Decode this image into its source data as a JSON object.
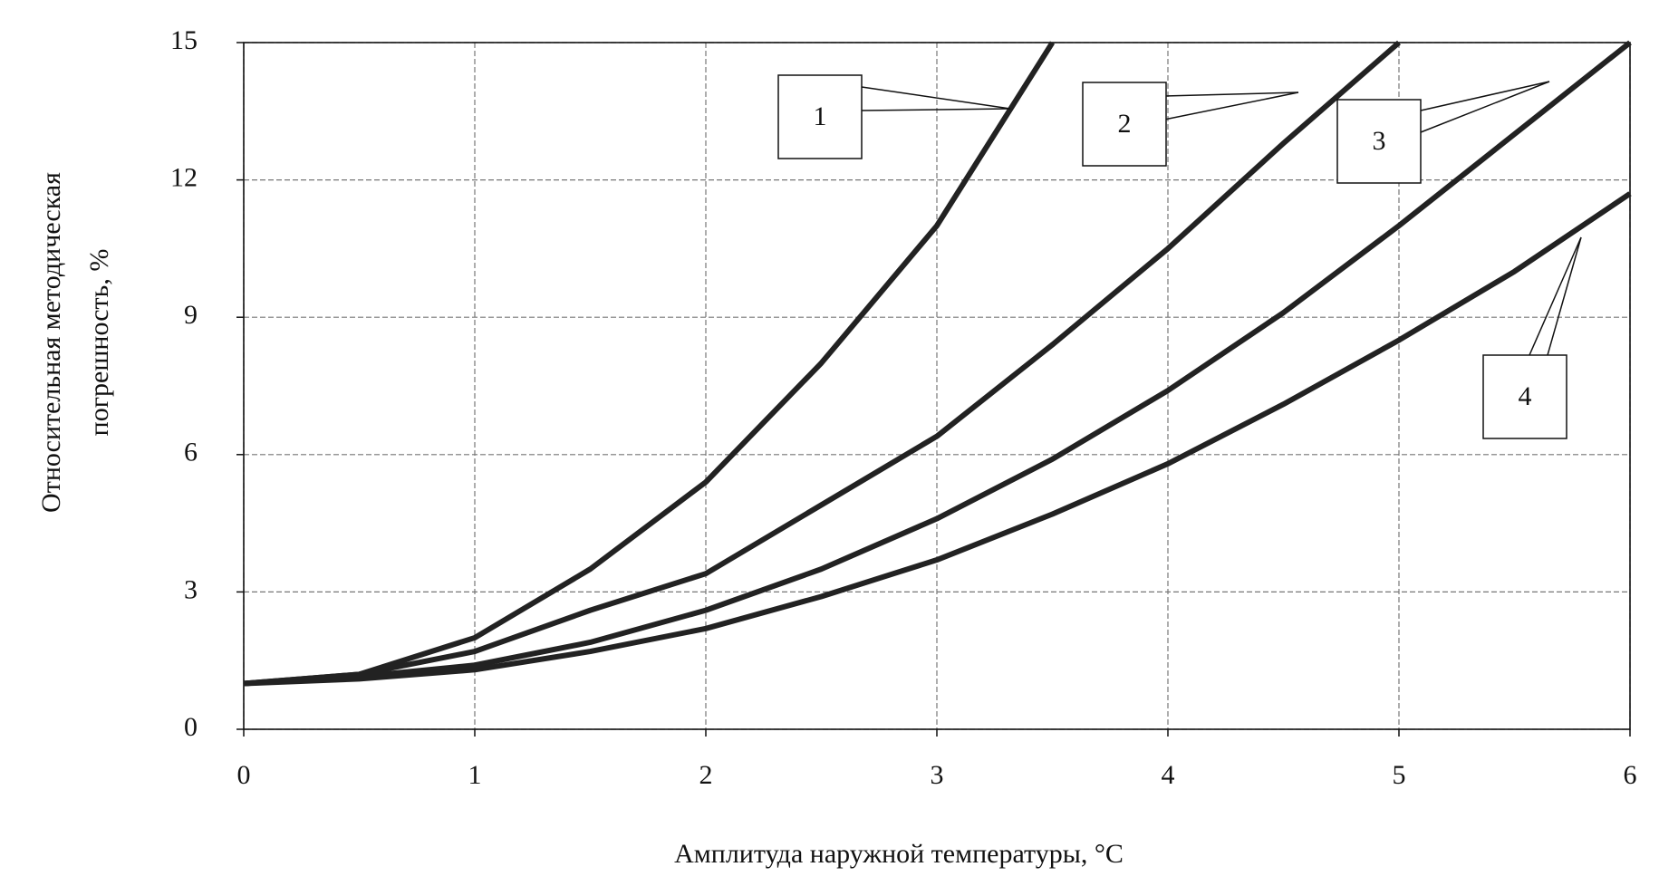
{
  "chart_data": {
    "type": "line",
    "x_label": "Амплитуда наружной температуры, °C",
    "y_label": [
      "Относительная методическая",
      "погрешность, %"
    ],
    "x": [
      0,
      0.5,
      1,
      1.5,
      2,
      2.5,
      3,
      3.5,
      4,
      4.5,
      5,
      5.5,
      6
    ],
    "series": [
      {
        "name": "1",
        "color": "#222222",
        "values": [
          1,
          1.2,
          2.0,
          3.5,
          5.4,
          8.0,
          11.0,
          15.0,
          null,
          null,
          null,
          null,
          null
        ]
      },
      {
        "name": "2",
        "color": "#222222",
        "values": [
          1,
          1.2,
          1.7,
          2.6,
          3.4,
          4.9,
          6.4,
          8.4,
          10.5,
          12.8,
          15.0,
          null,
          null
        ]
      },
      {
        "name": "3",
        "color": "#222222",
        "values": [
          1,
          1.15,
          1.4,
          1.9,
          2.6,
          3.5,
          4.6,
          5.9,
          7.4,
          9.1,
          11.0,
          13.0,
          15.0
        ]
      },
      {
        "name": "4",
        "color": "#222222",
        "values": [
          1,
          1.1,
          1.3,
          1.7,
          2.2,
          2.9,
          3.7,
          4.7,
          5.8,
          7.1,
          8.5,
          10.0,
          11.7
        ]
      }
    ],
    "xlim": [
      0,
      6
    ],
    "xticks": [
      0,
      1,
      2,
      3,
      4,
      5,
      6
    ],
    "ylim": [
      0,
      15
    ],
    "yticks": [
      0,
      3,
      6,
      9,
      12,
      15
    ],
    "grid": true
  }
}
